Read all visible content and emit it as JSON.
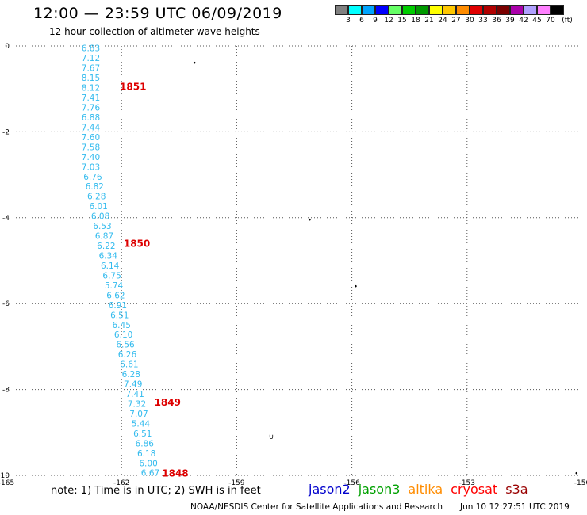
{
  "header": {
    "title": "12:00 — 23:59 UTC 06/09/2019",
    "subtitle": "12 hour collection of altimeter wave heights"
  },
  "legend": {
    "colors": [
      "#808080",
      "#00ffff",
      "#00a5ff",
      "#0000ff",
      "#66ff66",
      "#00cc00",
      "#009900",
      "#ffff00",
      "#ffc800",
      "#ff8c00",
      "#e00000",
      "#b00000",
      "#7a0000",
      "#aa00aa",
      "#b0a0ff",
      "#ff80ff",
      "#000000"
    ],
    "labels": [
      "3",
      "6",
      "9",
      "12",
      "15",
      "18",
      "21",
      "24",
      "27",
      "30",
      "33",
      "36",
      "39",
      "42",
      "45",
      "70",
      "(ft)"
    ]
  },
  "chart_data": {
    "type": "scatter",
    "title": "12:00 — 23:59 UTC 06/09/2019",
    "xlim": [
      -165,
      -150
    ],
    "ylim": [
      -10,
      0
    ],
    "xticks": [
      "-165",
      "-162",
      "-159",
      "-156",
      "-153",
      "-150"
    ],
    "yticks": [
      "0",
      "-2",
      "-4",
      "-6",
      "-8",
      "-10"
    ],
    "grid": true,
    "point_color": "#33bbee",
    "swh_labels": [
      {
        "x": -162.8,
        "y": -0.05,
        "text": "6.83"
      },
      {
        "x": -162.8,
        "y": -0.28,
        "text": "7.12"
      },
      {
        "x": -162.8,
        "y": -0.51,
        "text": "7.67"
      },
      {
        "x": -162.8,
        "y": -0.74,
        "text": "8.15"
      },
      {
        "x": -162.8,
        "y": -0.97,
        "text": "8.12"
      },
      {
        "x": -162.8,
        "y": -1.2,
        "text": "7.41"
      },
      {
        "x": -162.8,
        "y": -1.43,
        "text": "7.76"
      },
      {
        "x": -162.8,
        "y": -1.66,
        "text": "6.88"
      },
      {
        "x": -162.8,
        "y": -1.89,
        "text": "7.44"
      },
      {
        "x": -162.8,
        "y": -2.12,
        "text": "7.60"
      },
      {
        "x": -162.8,
        "y": -2.35,
        "text": "7.58"
      },
      {
        "x": -162.8,
        "y": -2.58,
        "text": "7.40"
      },
      {
        "x": -162.8,
        "y": -2.81,
        "text": "7.03"
      },
      {
        "x": -162.75,
        "y": -3.04,
        "text": "6.76"
      },
      {
        "x": -162.7,
        "y": -3.27,
        "text": "6.82"
      },
      {
        "x": -162.65,
        "y": -3.5,
        "text": "6.28"
      },
      {
        "x": -162.6,
        "y": -3.73,
        "text": "6.01"
      },
      {
        "x": -162.55,
        "y": -3.96,
        "text": "6.08"
      },
      {
        "x": -162.5,
        "y": -4.19,
        "text": "6.53"
      },
      {
        "x": -162.45,
        "y": -4.42,
        "text": "6.87"
      },
      {
        "x": -162.4,
        "y": -4.65,
        "text": "6.22"
      },
      {
        "x": -162.35,
        "y": -4.88,
        "text": "6.34"
      },
      {
        "x": -162.3,
        "y": -5.11,
        "text": "6.14"
      },
      {
        "x": -162.25,
        "y": -5.34,
        "text": "6.75"
      },
      {
        "x": -162.2,
        "y": -5.57,
        "text": "5.74"
      },
      {
        "x": -162.15,
        "y": -5.8,
        "text": "6.62"
      },
      {
        "x": -162.1,
        "y": -6.03,
        "text": "6.91"
      },
      {
        "x": -162.05,
        "y": -6.26,
        "text": "6.51"
      },
      {
        "x": -162.0,
        "y": -6.49,
        "text": "6.45"
      },
      {
        "x": -161.95,
        "y": -6.72,
        "text": "6.10"
      },
      {
        "x": -161.9,
        "y": -6.95,
        "text": "6.56"
      },
      {
        "x": -161.85,
        "y": -7.18,
        "text": "6.26"
      },
      {
        "x": -161.8,
        "y": -7.41,
        "text": "6.61"
      },
      {
        "x": -161.75,
        "y": -7.64,
        "text": "6.28"
      },
      {
        "x": -161.7,
        "y": -7.87,
        "text": "7.49"
      },
      {
        "x": -161.65,
        "y": -8.1,
        "text": "7.41"
      },
      {
        "x": -161.6,
        "y": -8.33,
        "text": "7.32"
      },
      {
        "x": -161.55,
        "y": -8.56,
        "text": "7.07"
      },
      {
        "x": -161.5,
        "y": -8.79,
        "text": "5.44"
      },
      {
        "x": -161.45,
        "y": -9.02,
        "text": "6.51"
      },
      {
        "x": -161.4,
        "y": -9.25,
        "text": "6.86"
      },
      {
        "x": -161.35,
        "y": -9.48,
        "text": "6.18"
      },
      {
        "x": -161.3,
        "y": -9.71,
        "text": "6.00"
      },
      {
        "x": -161.25,
        "y": -9.94,
        "text": "6.67"
      }
    ],
    "time_labels": [
      {
        "x": -161.7,
        "y": -0.95,
        "text": "1851"
      },
      {
        "x": -161.6,
        "y": -4.6,
        "text": "1850"
      },
      {
        "x": -160.8,
        "y": -8.3,
        "text": "1849"
      },
      {
        "x": -160.6,
        "y": -9.95,
        "text": "1848"
      }
    ],
    "other_marks": [
      {
        "x": -160.1,
        "y": -0.4,
        "text": "•"
      },
      {
        "x": -157.1,
        "y": -4.05,
        "text": "•"
      },
      {
        "x": -155.9,
        "y": -5.6,
        "text": "•"
      },
      {
        "x": -158.1,
        "y": -9.1,
        "text": "∪"
      },
      {
        "x": -150.15,
        "y": -9.95,
        "text": "•"
      }
    ]
  },
  "note": "note: 1) Time is in UTC; 2) SWH is in feet",
  "missions": [
    {
      "name": "jason2",
      "color": "#0000cc"
    },
    {
      "name": "jason3",
      "color": "#00a000"
    },
    {
      "name": "altika",
      "color": "#ff8c00"
    },
    {
      "name": "cryosat",
      "color": "#ff0000"
    },
    {
      "name": "s3a",
      "color": "#990000"
    }
  ],
  "footer": {
    "credit": "NOAA/NESDIS Center for Satellite Applications and Research",
    "timestamp": "Jun 10 12:27:51 UTC 2019"
  }
}
